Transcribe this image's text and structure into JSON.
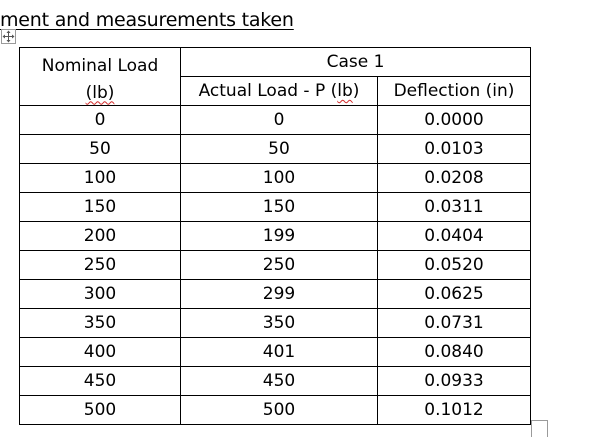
{
  "document": {
    "heading": "ment and measurements taken",
    "table": {
      "header": {
        "nominal_line1": "Nominal Load",
        "nominal_line2": "(lb)",
        "case_label": "Case 1",
        "actual_pre": "Actual Load - P (",
        "actual_unit": "lb",
        "actual_post": ")",
        "deflection_label": "Deflection (in)"
      },
      "rows": [
        {
          "nominal": "0",
          "actual": "0",
          "deflection": "0.0000"
        },
        {
          "nominal": "50",
          "actual": "50",
          "deflection": "0.0103"
        },
        {
          "nominal": "100",
          "actual": "100",
          "deflection": "0.0208"
        },
        {
          "nominal": "150",
          "actual": "150",
          "deflection": "0.0311"
        },
        {
          "nominal": "200",
          "actual": "199",
          "deflection": "0.0404"
        },
        {
          "nominal": "250",
          "actual": "250",
          "deflection": "0.0520"
        },
        {
          "nominal": "300",
          "actual": "299",
          "deflection": "0.0625"
        },
        {
          "nominal": "350",
          "actual": "350",
          "deflection": "0.0731"
        },
        {
          "nominal": "400",
          "actual": "401",
          "deflection": "0.0840"
        },
        {
          "nominal": "450",
          "actual": "450",
          "deflection": "0.0933"
        },
        {
          "nominal": "500",
          "actual": "500",
          "deflection": "0.1012"
        }
      ]
    }
  },
  "icons": {
    "table_move_handle": "move-cross-icon",
    "table_resize_handle": "resize-square-icon"
  },
  "colors": {
    "spellcheck_squiggle": "#d22a2a",
    "handle_border": "#9a9a9a"
  }
}
